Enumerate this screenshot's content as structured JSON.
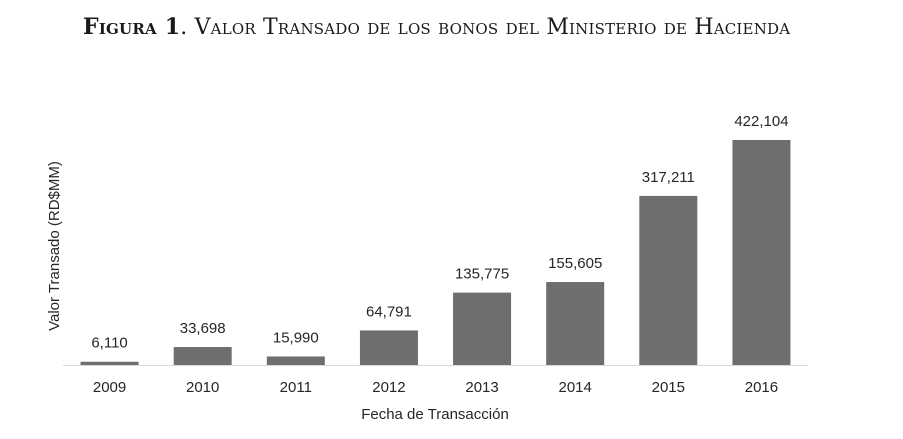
{
  "figure": {
    "label": "Figura 1",
    "caption": "Valor Transado de los bonos del Ministerio de Hacienda"
  },
  "chart_data": {
    "type": "bar",
    "title": "Figura 1. Valor Transado de los bonos del Ministerio de Hacienda",
    "categories": [
      "2009",
      "2010",
      "2011",
      "2012",
      "2013",
      "2014",
      "2015",
      "2016"
    ],
    "values": [
      6110,
      33698,
      15990,
      64791,
      135775,
      155605,
      317211,
      422104
    ],
    "value_labels": [
      "6,110",
      "33,698",
      "15,990",
      "64,791",
      "135,775",
      "155,605",
      "317,211",
      "422,104"
    ],
    "xlabel": "Fecha de Transacción",
    "ylabel": "Valor Transado (RD$MM)",
    "ylim": [
      0,
      422104
    ],
    "grid": false,
    "legend": "none",
    "bar_color": "#6d6e70"
  }
}
